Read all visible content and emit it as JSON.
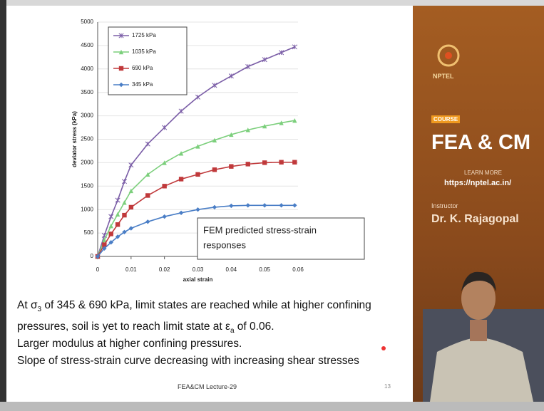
{
  "chart_data": {
    "type": "line",
    "x": [
      0,
      0.002,
      0.004,
      0.006,
      0.008,
      0.01,
      0.015,
      0.02,
      0.025,
      0.03,
      0.035,
      0.04,
      0.045,
      0.05,
      0.055,
      0.059
    ],
    "series": [
      {
        "name": "1725 kPa",
        "color": "#7b5ea7",
        "marker": "star",
        "values": [
          0,
          450,
          850,
          1200,
          1600,
          1950,
          2400,
          2750,
          3100,
          3400,
          3650,
          3850,
          4050,
          4200,
          4350,
          4470
        ]
      },
      {
        "name": "1035 kPa",
        "color": "#7ccf7c",
        "marker": "triangle",
        "values": [
          0,
          350,
          650,
          900,
          1150,
          1400,
          1750,
          2000,
          2200,
          2350,
          2480,
          2600,
          2700,
          2780,
          2850,
          2900
        ]
      },
      {
        "name": "690 kPa",
        "color": "#c0393b",
        "marker": "square",
        "values": [
          0,
          250,
          480,
          680,
          880,
          1050,
          1300,
          1500,
          1650,
          1750,
          1850,
          1920,
          1970,
          2000,
          2010,
          2010
        ]
      },
      {
        "name": "345 kPa",
        "color": "#4a7ec6",
        "marker": "diamond",
        "values": [
          0,
          170,
          300,
          420,
          520,
          600,
          740,
          850,
          930,
          1000,
          1050,
          1080,
          1090,
          1090,
          1090,
          1090
        ]
      }
    ],
    "x_label": "axial strain",
    "y_label": "deviator stress (kPa)",
    "xlim": [
      0,
      0.06
    ],
    "xticks": [
      0,
      0.01,
      0.02,
      0.03,
      0.04,
      0.05,
      0.06
    ],
    "ylim": [
      0,
      5000
    ],
    "yticks": [
      0,
      500,
      1000,
      1500,
      2000,
      2500,
      3000,
      3500,
      4000,
      4500,
      5000
    ],
    "legend": "upper left",
    "grid": true,
    "annotation": [
      "FEM predicted stress-strain",
      "responses"
    ]
  },
  "slide": {
    "lines": [
      [
        "At σ",
        "3",
        " of 345 & 690 kPa, limit states are reached while at higher confining"
      ],
      [
        "pressures, soil is yet to reach limit state at ε",
        "a",
        " of 0.06."
      ],
      [
        "Larger modulus at higher confining pressures."
      ],
      [
        "Slope of stress-strain curve decreasing with increasing shear stresses"
      ]
    ],
    "footer": "FEA&CM Lecture-29",
    "page": "13"
  },
  "sidebar": {
    "logo": "NPTEL",
    "badge": "COURSE",
    "course": "FEA & CM",
    "learn": "LEARN MORE",
    "url": "https://nptel.ac.in/",
    "role": "Instructor",
    "instructor": "Dr. K. Rajagopal"
  }
}
